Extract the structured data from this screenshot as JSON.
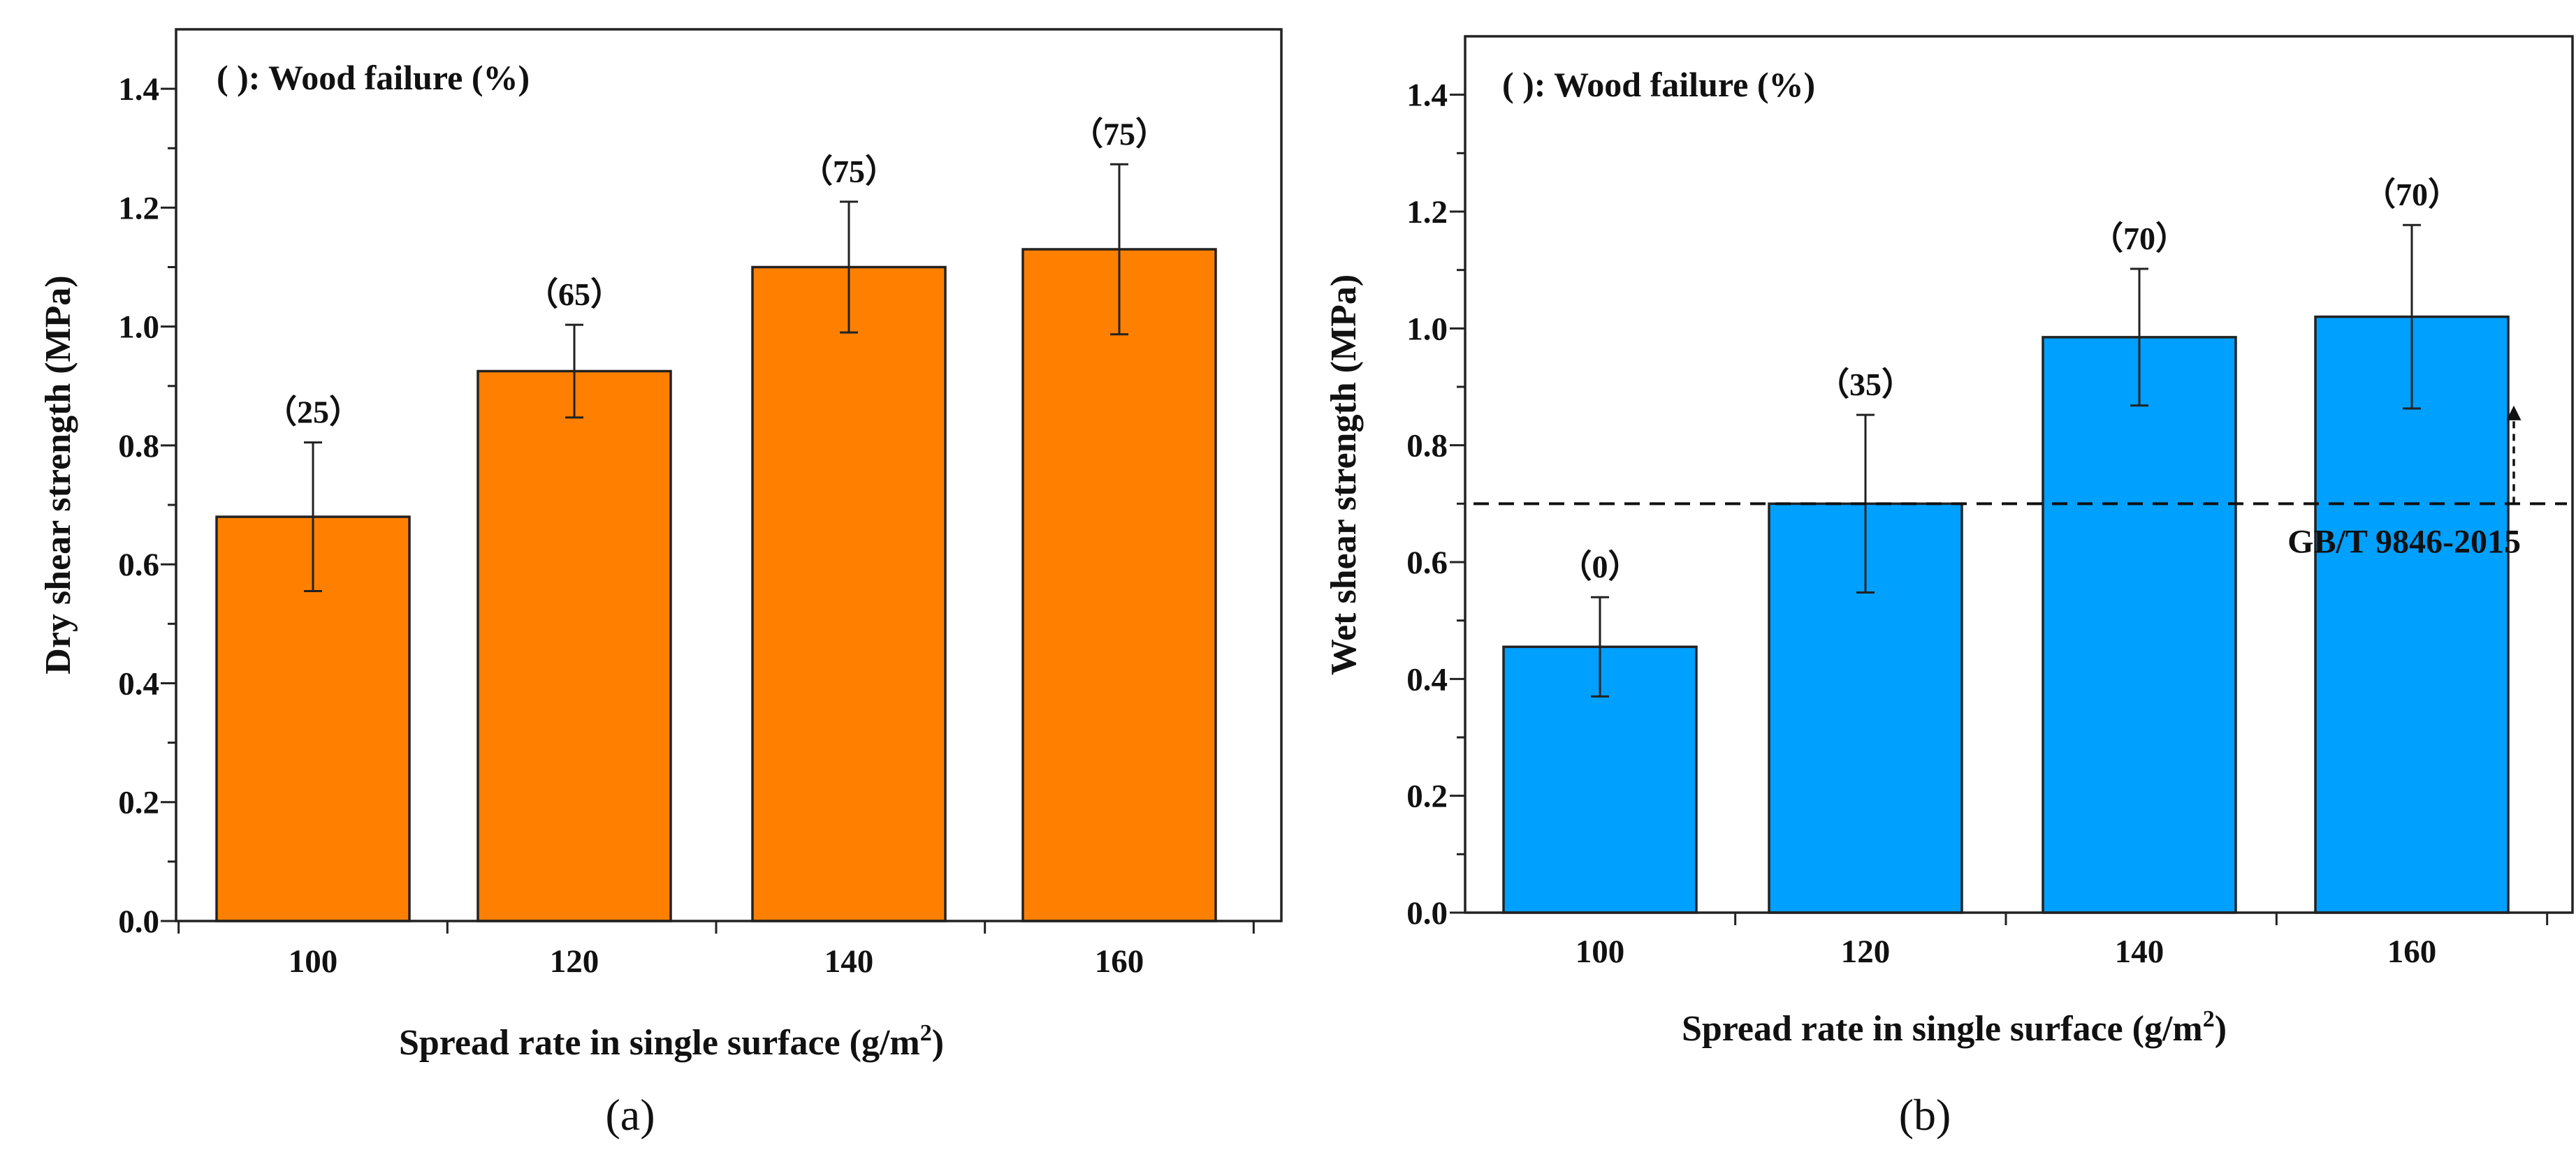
{
  "chart_data": [
    {
      "type": "bar",
      "panel_label": "(a)",
      "legend_note": "(  ): Wood failure (%)",
      "categories": [
        "100",
        "120",
        "140",
        "160"
      ],
      "values": [
        0.68,
        0.925,
        1.1,
        1.13
      ],
      "error": [
        0.125,
        0.078,
        0.11,
        0.143
      ],
      "data_labels": [
        "（25）",
        "（65）",
        "（75）",
        "（75）"
      ],
      "xlabel": "Spread rate in single surface (g/m",
      "xlabel_sup": "2",
      "xlabel_end": ")",
      "ylabel": "Dry shear strength (MPa)",
      "ylim": [
        0.0,
        1.5
      ],
      "yticks": [
        "0.0",
        "0.2",
        "0.4",
        "0.6",
        "0.8",
        "1.0",
        "1.2",
        "1.4"
      ],
      "bar_color": "#ff8000"
    },
    {
      "type": "bar",
      "panel_label": "(b)",
      "legend_note": "(  ): Wood failure (%)",
      "categories": [
        "100",
        "120",
        "140",
        "160"
      ],
      "values": [
        0.455,
        0.7,
        0.985,
        1.02
      ],
      "error": [
        0.085,
        0.152,
        0.117,
        0.157
      ],
      "data_labels": [
        "（0）",
        "（35）",
        "（70）",
        "（70）"
      ],
      "xlabel": "Spread rate in single surface (g/m",
      "xlabel_sup": "2",
      "xlabel_end": ")",
      "ylabel": "Wet shear strength (MPa)",
      "ylim": [
        0.0,
        1.5
      ],
      "yticks": [
        "0.0",
        "0.2",
        "0.4",
        "0.6",
        "0.8",
        "1.0",
        "1.2",
        "1.4"
      ],
      "bar_color": "#00a0ff",
      "reference_line": {
        "value": 0.7,
        "label": "GB/T 9846-2015"
      }
    }
  ]
}
